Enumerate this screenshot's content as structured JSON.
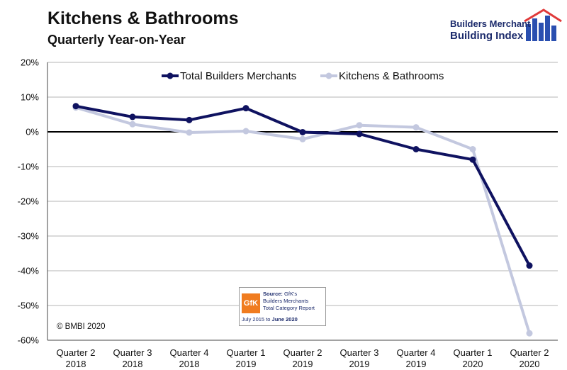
{
  "header": {
    "title": "Kitchens & Bathrooms",
    "subtitle": "Quarterly Year-on-Year"
  },
  "logo": {
    "line1": "Builders Merchant",
    "line2": "Building Index",
    "colors": {
      "roof": "#e03a3a",
      "bars": "#2a4fb0",
      "text": "#1b2a6b"
    }
  },
  "source_box": {
    "badge": "GfK",
    "label": "Source:",
    "name": "GfK's",
    "line2": "Builders Merchants",
    "line3": "Total Category Report",
    "dates_prefix": "July 2015",
    "dates_mid": " to ",
    "dates_end": "June 2020"
  },
  "copyright": "© BMBI 2020",
  "chart_data": {
    "type": "line",
    "title": "Kitchens & Bathrooms",
    "subtitle": "Quarterly Year-on-Year",
    "categories": [
      [
        "Quarter 2",
        "2018"
      ],
      [
        "Quarter 3",
        "2018"
      ],
      [
        "Quarter 4",
        "2018"
      ],
      [
        "Quarter 1",
        "2019"
      ],
      [
        "Quarter 2",
        "2019"
      ],
      [
        "Quarter 3",
        "2019"
      ],
      [
        "Quarter 4",
        "2019"
      ],
      [
        "Quarter 1",
        "2020"
      ],
      [
        "Quarter 2",
        "2020"
      ]
    ],
    "yticks": [
      "20%",
      "10%",
      "0%",
      "-10%",
      "-20%",
      "-30%",
      "-40%",
      "-50%",
      "-60%"
    ],
    "ylim": [
      -60,
      20
    ],
    "grid": true,
    "legend_position": "top-center",
    "series": [
      {
        "name": "Total Builders Merchants",
        "color": "#0f1260",
        "values": [
          7.4,
          4.3,
          3.4,
          6.8,
          -0.1,
          -0.6,
          -5.0,
          -8.0,
          -38.5
        ]
      },
      {
        "name": "Kitchens & Bathrooms",
        "color": "#c3c8df",
        "values": [
          7.0,
          2.2,
          -0.2,
          0.2,
          -2.1,
          1.9,
          1.3,
          -5.0,
          -58.0
        ]
      }
    ]
  }
}
